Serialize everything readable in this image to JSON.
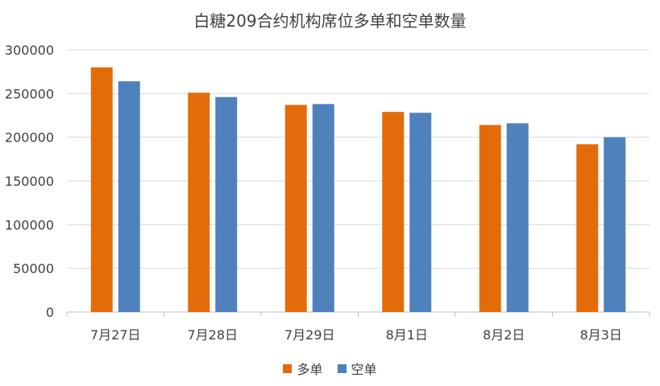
{
  "chart_data": {
    "type": "bar",
    "title": "白糖209合约机构席位多单和空单数量",
    "xlabel": "",
    "ylabel": "",
    "ylim": [
      0,
      300000
    ],
    "yticks": [
      "0",
      "50000",
      "100000",
      "150000",
      "200000",
      "250000",
      "300000"
    ],
    "ytick_values": [
      0,
      50000,
      100000,
      150000,
      200000,
      250000,
      300000
    ],
    "categories": [
      "7月27日",
      "7月28日",
      "7月29日",
      "8月1日",
      "8月2日",
      "8月3日"
    ],
    "series": [
      {
        "name": "多单",
        "color": "#E36C0A",
        "values": [
          280000,
          251000,
          237000,
          229000,
          214000,
          192000
        ]
      },
      {
        "name": "空单",
        "color": "#4F81BD",
        "values": [
          264000,
          246000,
          238000,
          228000,
          216000,
          200000
        ]
      }
    ],
    "grid": true,
    "legend_position": "bottom"
  }
}
